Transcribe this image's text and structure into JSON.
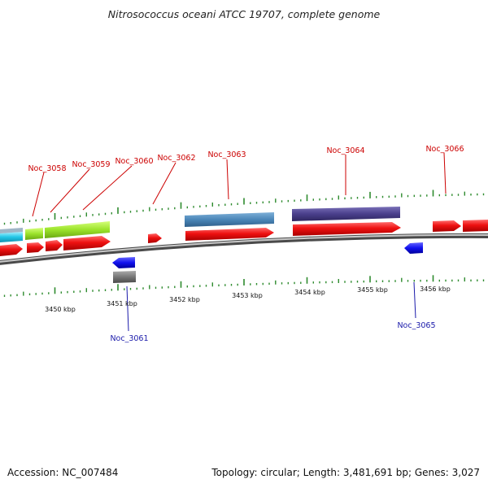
{
  "title": "Nitrosococcus oceani ATCC 19707, complete genome",
  "footer": {
    "accession": "Accession: NC_007484",
    "summary": "Topology: circular; Length: 3,481,691 bp; Genes: 3,027"
  },
  "colors": {
    "backbone": "#8a8a8a",
    "tick": "#2e8b2e",
    "red_feature": "#ee1111",
    "top_label": "#cc0000",
    "bottom_label": "#1a1aaa"
  },
  "scale_labels": [
    "3450 kbp",
    "3451 kbp",
    "3452 kbp",
    "3453 kbp",
    "3454 kbp",
    "3455 kbp",
    "3456 kbp"
  ],
  "gene_labels_top": [
    "Noc_3058",
    "Noc_3059",
    "Noc_3060",
    "Noc_3062",
    "Noc_3063",
    "Noc_3064",
    "Noc_3066"
  ],
  "gene_labels_bottom": [
    "Noc_3061",
    "Noc_3065"
  ]
}
